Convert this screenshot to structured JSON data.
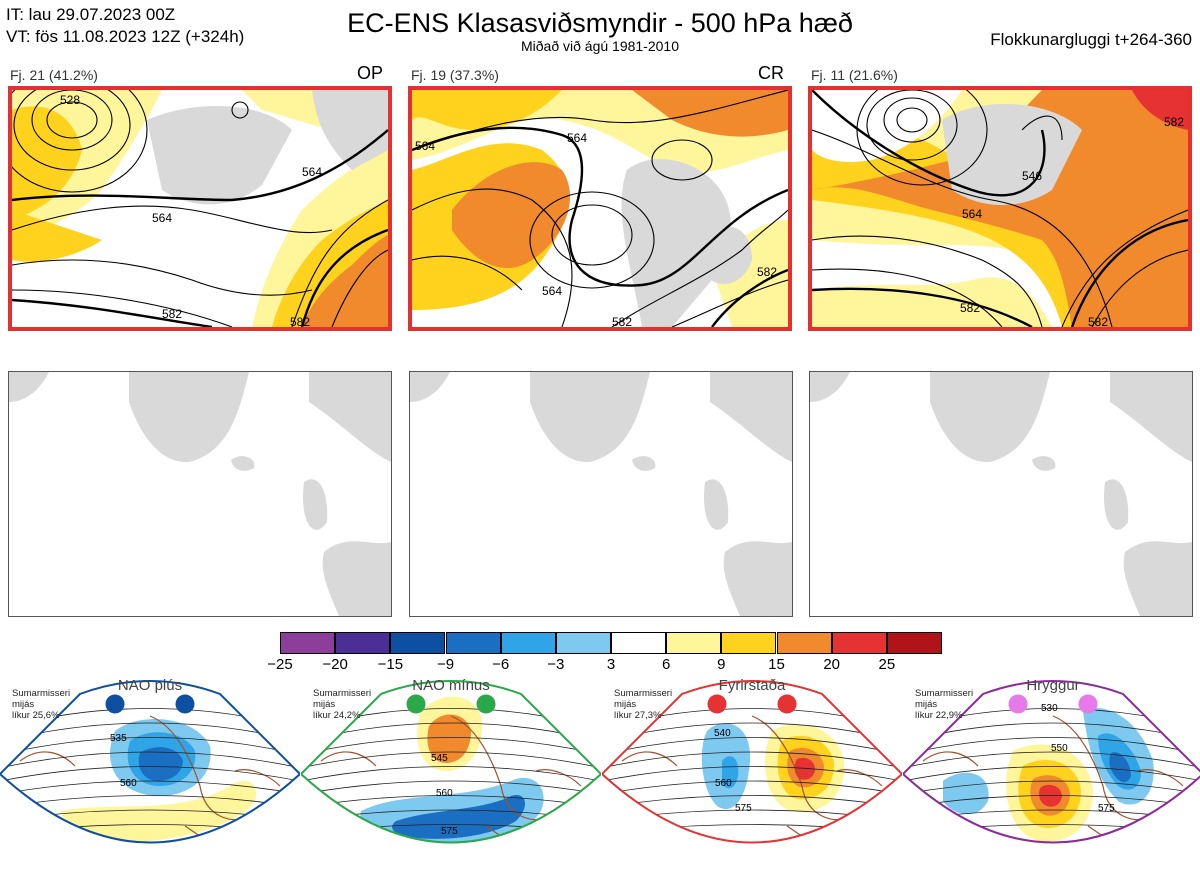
{
  "header": {
    "it_line": "IT: lau 29.07.2023 00Z",
    "vt_line": "VT: fös 11.08.2023 12Z  (+324h)",
    "title": "EC-ENS Klasasviðsmyndir - 500 hPa hæð",
    "subtitle": "Miðað við ágú 1981-2010",
    "window": "Flokkunargluggi t+264-360"
  },
  "panels": [
    {
      "label": "Fj. 21 (41.2%)",
      "tag": "OP",
      "contours": [
        "528",
        "564",
        "564",
        "582",
        "582"
      ]
    },
    {
      "label": "Fj. 19 (37.3%)",
      "tag": "CR",
      "contours": [
        "564",
        "564",
        "564",
        "582",
        "582"
      ]
    },
    {
      "label": "Fj. 11 (21.6%)",
      "tag": "",
      "contours": [
        "546",
        "564",
        "582",
        "582",
        "582"
      ]
    }
  ],
  "colorbar": {
    "ticks": [
      "−25",
      "−20",
      "−15",
      "−9",
      "−6",
      "−3",
      "3",
      "6",
      "9",
      "15",
      "20",
      "25"
    ],
    "colors": [
      "#8b3f9a",
      "#4b2e96",
      "#0d4fa0",
      "#1b6fc2",
      "#2fa4e7",
      "#7ec9f0",
      "#ffffff",
      "#fff59b",
      "#ffd21e",
      "#f08a2c",
      "#e63232",
      "#b01419"
    ]
  },
  "regimes": [
    {
      "title": "NAO plús",
      "note": [
        "Sumarmisseri",
        "mijás",
        "líkur 25,6%"
      ],
      "color": "#0d4fa0",
      "contours": [
        "535",
        "560"
      ]
    },
    {
      "title": "NAO mínus",
      "note": [
        "Sumarmisseri",
        "mijás",
        "líkur 24,2%"
      ],
      "color": "#2aa84a",
      "contours": [
        "545",
        "560",
        "575"
      ]
    },
    {
      "title": "Fyrirstaða",
      "note": [
        "Sumarmisseri",
        "mijás",
        "líkur 27,3%"
      ],
      "color": "#e63232",
      "contours": [
        "540",
        "560",
        "575"
      ]
    },
    {
      "title": "Hryggur",
      "note": [
        "Sumarmisseri",
        "mijás",
        "líkur 22,9%"
      ],
      "color": "#8b2a9a",
      "contours": [
        "530",
        "550",
        "575"
      ]
    }
  ]
}
